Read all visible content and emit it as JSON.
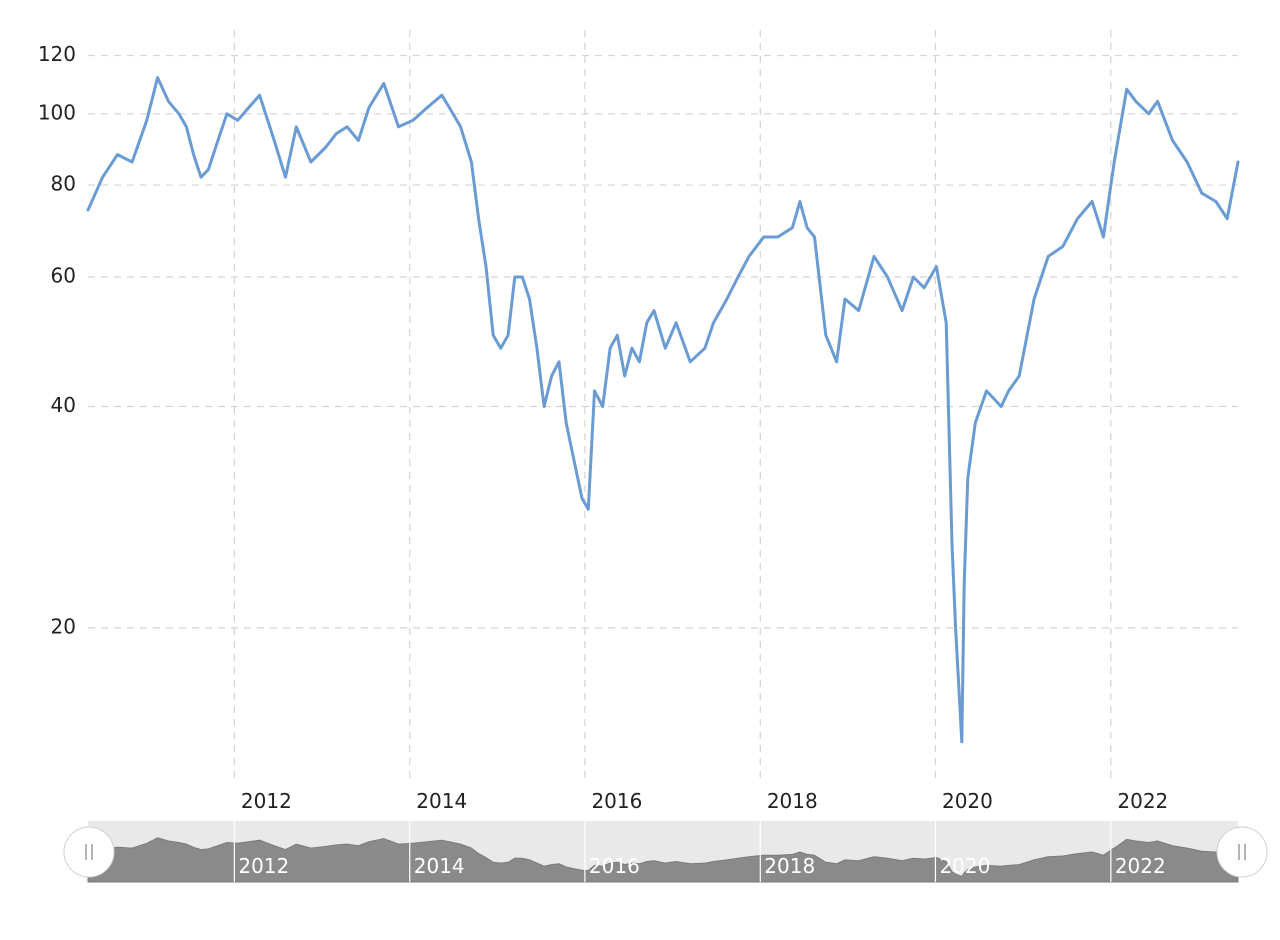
{
  "chart_data": {
    "type": "line",
    "title": "",
    "xlabel": "",
    "ylabel": "",
    "y_scale": "log",
    "ylim": [
      12.5,
      130
    ],
    "xlim": [
      "2010-05-01",
      "2023-06-15"
    ],
    "grid": true,
    "y_ticks": [
      "20",
      "40",
      "60",
      "80",
      "100",
      "120"
    ],
    "x_ticks": [
      "2012",
      "2014",
      "2016",
      "2018",
      "2020",
      "2022"
    ],
    "series": [
      {
        "color": "#6a9bd3",
        "x": [
          "2010-05-01",
          "2010-07-01",
          "2010-09-01",
          "2010-11-01",
          "2011-01-01",
          "2011-02-15",
          "2011-04-01",
          "2011-05-15",
          "2011-06-15",
          "2011-07-15",
          "2011-08-15",
          "2011-09-15",
          "2011-10-15",
          "2011-12-01",
          "2012-01-15",
          "2012-03-01",
          "2012-04-15",
          "2012-06-15",
          "2012-08-01",
          "2012-09-15",
          "2012-11-15",
          "2013-01-15",
          "2013-03-01",
          "2013-04-15",
          "2013-06-01",
          "2013-07-15",
          "2013-09-15",
          "2013-11-15",
          "2014-01-15",
          "2014-03-15",
          "2014-05-15",
          "2014-06-15",
          "2014-08-01",
          "2014-09-15",
          "2014-10-15",
          "2014-11-15",
          "2014-12-15",
          "2015-01-15",
          "2015-02-15",
          "2015-03-15",
          "2015-04-15",
          "2015-05-15",
          "2015-06-15",
          "2015-07-15",
          "2015-08-15",
          "2015-09-15",
          "2015-10-15",
          "2015-11-15",
          "2015-12-20",
          "2016-01-15",
          "2016-02-10",
          "2016-03-15",
          "2016-04-15",
          "2016-05-15",
          "2016-06-15",
          "2016-07-15",
          "2016-08-15",
          "2016-09-15",
          "2016-10-15",
          "2016-12-01",
          "2017-01-15",
          "2017-03-15",
          "2017-05-15",
          "2017-06-20",
          "2017-08-15",
          "2017-09-30",
          "2017-11-15",
          "2018-01-15",
          "2018-03-15",
          "2018-05-15",
          "2018-06-15",
          "2018-07-15",
          "2018-08-15",
          "2018-10-01",
          "2018-11-15",
          "2018-12-20",
          "2019-02-15",
          "2019-04-20",
          "2019-06-15",
          "2019-08-15",
          "2019-10-01",
          "2019-11-15",
          "2020-01-05",
          "2020-02-15",
          "2020-03-10",
          "2020-03-25",
          "2020-04-20",
          "2020-04-30",
          "2020-05-15",
          "2020-06-15",
          "2020-08-01",
          "2020-10-01",
          "2020-11-01",
          "2020-12-15",
          "2021-02-15",
          "2021-04-15",
          "2021-06-15",
          "2021-08-15",
          "2021-10-15",
          "2021-12-01",
          "2022-01-15",
          "2022-03-08",
          "2022-04-15",
          "2022-06-08",
          "2022-07-15",
          "2022-09-15",
          "2022-11-15",
          "2023-01-15",
          "2023-03-15",
          "2023-05-01",
          "2023-06-15"
        ],
        "values": [
          74,
          82,
          88,
          86,
          98,
          112,
          104,
          100,
          96,
          88,
          82,
          84,
          90,
          100,
          98,
          102,
          106,
          92,
          82,
          96,
          86,
          90,
          94,
          96,
          92,
          102,
          110,
          96,
          98,
          102,
          106,
          102,
          96,
          86,
          72,
          62,
          50,
          48,
          50,
          60,
          60,
          56,
          48,
          40,
          44,
          46,
          38,
          34,
          30,
          29,
          42,
          40,
          48,
          50,
          44,
          48,
          46,
          52,
          54,
          48,
          52,
          46,
          48,
          52,
          56,
          60,
          64,
          68,
          68,
          70,
          76,
          70,
          68,
          50,
          46,
          56,
          54,
          64,
          60,
          54,
          60,
          58,
          62,
          52,
          26,
          20,
          14,
          23,
          32,
          38,
          42,
          40,
          42,
          44,
          56,
          64,
          66,
          72,
          76,
          68,
          86,
          108,
          104,
          100,
          104,
          92,
          86,
          78,
          76,
          72,
          86
        ]
      }
    ]
  },
  "navigator": {
    "labels": [
      "2012",
      "2014",
      "2016",
      "2018",
      "2020",
      "2022"
    ],
    "left_handle_icon": "grip-icon",
    "right_handle_icon": "grip-icon"
  }
}
